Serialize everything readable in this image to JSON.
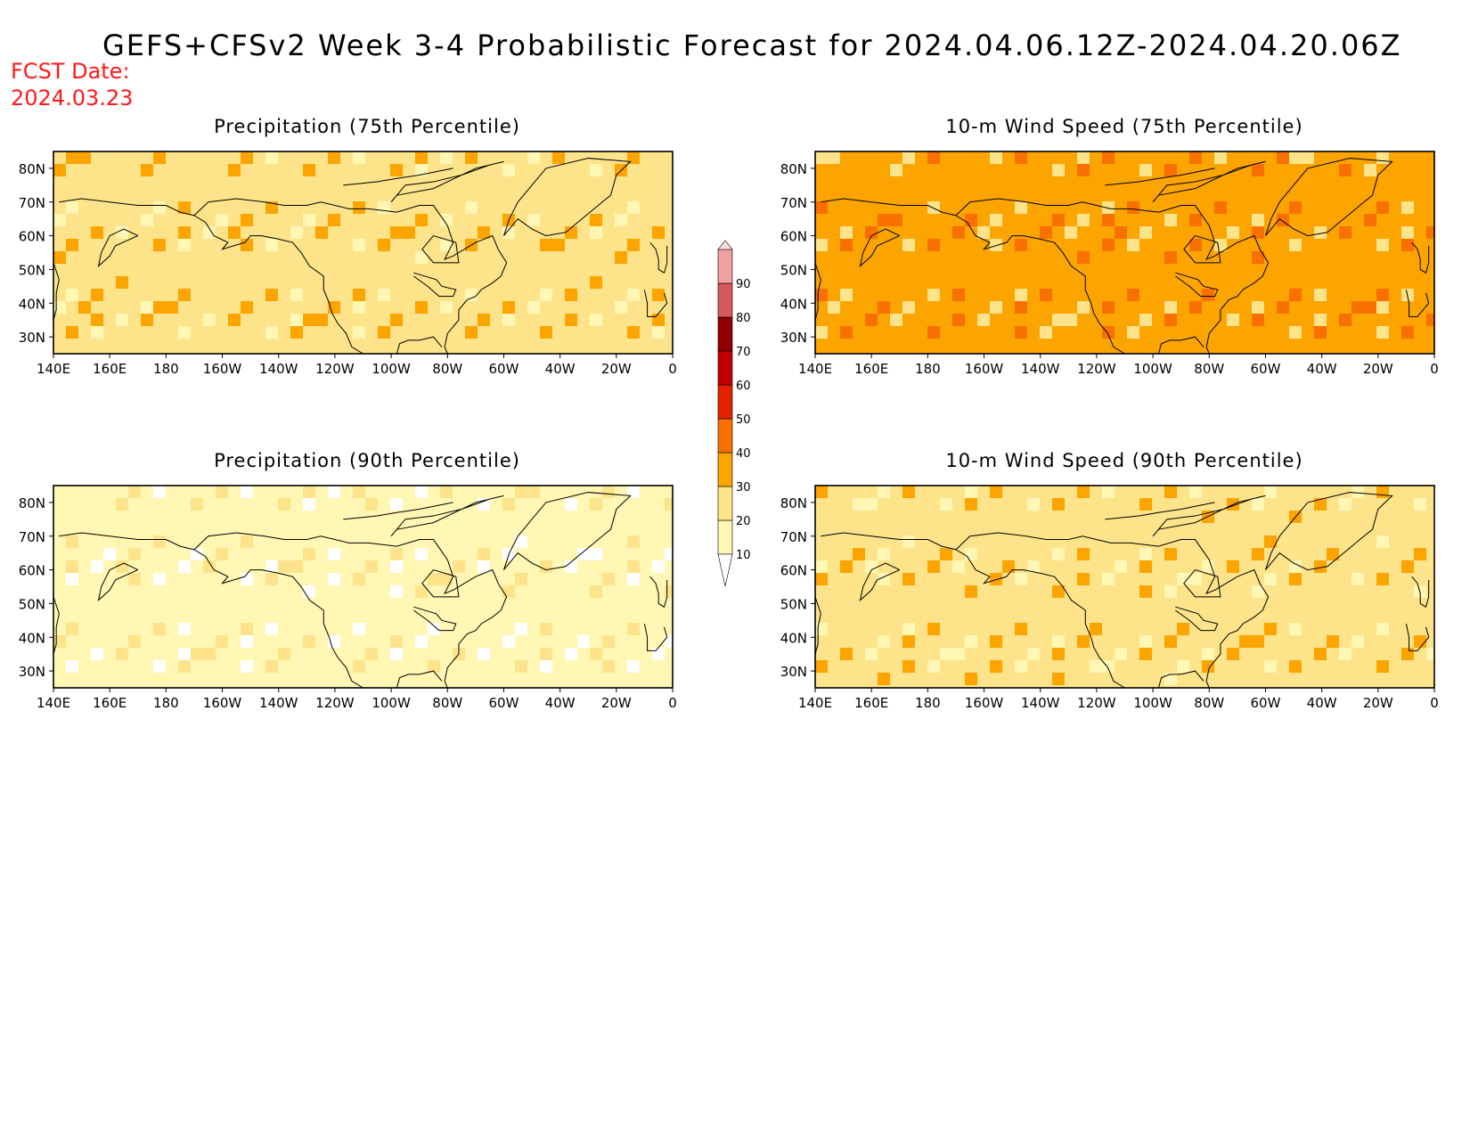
{
  "header": {
    "title": "GEFS+CFSv2 Week 3-4 Probabilistic Forecast for 2024.04.06.12Z-2024.04.20.06Z",
    "fcst_label": "FCST Date:",
    "fcst_date": "2024.03.23"
  },
  "axes": {
    "lon_ticks": [
      "140E",
      "160E",
      "180",
      "160W",
      "140W",
      "120W",
      "100W",
      "80W",
      "60W",
      "40W",
      "20W",
      "0"
    ],
    "lat_ticks": [
      "80N",
      "70N",
      "60N",
      "50N",
      "40N",
      "30N"
    ],
    "lon_range_deg_east": [
      140,
      360
    ],
    "lat_range_deg": [
      25,
      85
    ]
  },
  "panels": [
    {
      "id": "precip75",
      "title": "Precipitation (75th Percentile)",
      "base_category": 20
    },
    {
      "id": "wind75",
      "title": "10-m Wind Speed (75th Percentile)",
      "base_category": 30
    },
    {
      "id": "precip90",
      "title": "Precipitation (90th Percentile)",
      "base_category": 10
    },
    {
      "id": "wind90",
      "title": "10-m Wind Speed (90th Percentile)",
      "base_category": 20
    }
  ],
  "colorbar": {
    "levels": [
      10,
      20,
      30,
      40,
      50,
      60,
      70,
      80,
      90
    ],
    "colors": [
      "#fff7b3",
      "#fde38a",
      "#fca400",
      "#f87000",
      "#e52200",
      "#c00000",
      "#900000",
      "#d6585a",
      "#f0a0a0",
      "#fcdcdc"
    ]
  }
}
